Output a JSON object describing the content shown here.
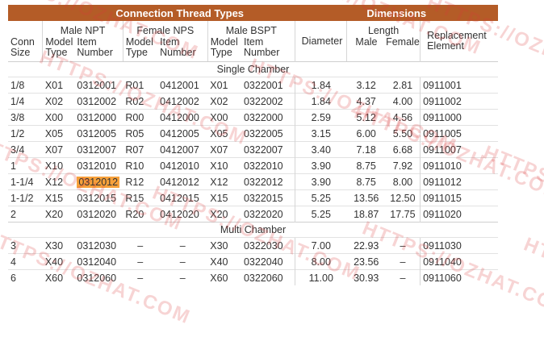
{
  "header": {
    "connection_thread_types": "Connection Thread Types",
    "dimensions": "Dimensions",
    "male_npt": "Male NPT",
    "female_nps": "Female NPS",
    "male_bspt": "Male BSPT",
    "diameter": "Diameter",
    "length": "Length",
    "replacement_element": "Replacement Element",
    "conn_size": "Conn Size",
    "model_type": "Model Type",
    "item_number": "Item Number",
    "male": "Male",
    "female": "Female"
  },
  "sections": [
    {
      "title": "Single Chamber",
      "rows": [
        [
          "1/8",
          "X01",
          "0312001",
          "R01",
          "0412001",
          "X01",
          "0322001",
          "1.84",
          "3.12",
          "2.81",
          "0911001"
        ],
        [
          "1/4",
          "X02",
          "0312002",
          "R02",
          "0412002",
          "X02",
          "0322002",
          "1.84",
          "4.37",
          "4.00",
          "0911002"
        ],
        [
          "3/8",
          "X00",
          "0312000",
          "R00",
          "0412000",
          "X00",
          "0322000",
          "2.59",
          "5.12",
          "4.56",
          "0911000"
        ],
        [
          "1/2",
          "X05",
          "0312005",
          "R05",
          "0412005",
          "X05",
          "0322005",
          "3.15",
          "6.00",
          "5.50",
          "0911005"
        ],
        [
          "3/4",
          "X07",
          "0312007",
          "R07",
          "0412007",
          "X07",
          "0322007",
          "3.40",
          "7.18",
          "6.68",
          "0911007"
        ],
        [
          "1",
          "X10",
          "0312010",
          "R10",
          "0412010",
          "X10",
          "0322010",
          "3.90",
          "8.75",
          "7.92",
          "0911010"
        ],
        [
          "1-1/4",
          "X12",
          "0312012",
          "R12",
          "0412012",
          "X12",
          "0322012",
          "3.90",
          "8.75",
          "8.00",
          "0911012"
        ],
        [
          "1-1/2",
          "X15",
          "0312015",
          "R15",
          "0412015",
          "X15",
          "0322015",
          "5.25",
          "13.56",
          "12.50",
          "0911015"
        ],
        [
          "2",
          "X20",
          "0312020",
          "R20",
          "0412020",
          "X20",
          "0322020",
          "5.25",
          "18.87",
          "17.75",
          "0911020"
        ]
      ]
    },
    {
      "title": "Multi Chamber",
      "rows": [
        [
          "3",
          "X30",
          "0312030",
          "–",
          "–",
          "X30",
          "0322030",
          "7.00",
          "22.93",
          "–",
          "0911030"
        ],
        [
          "4",
          "X40",
          "0312040",
          "–",
          "–",
          "X40",
          "0322040",
          "8.00",
          "23.56",
          "–",
          "0911040"
        ],
        [
          "6",
          "X60",
          "0312060",
          "–",
          "–",
          "X60",
          "0322060",
          "11.00",
          "30.93",
          "–",
          "0911060"
        ]
      ]
    }
  ],
  "highlight": {
    "section": 0,
    "row": 6,
    "col": 2,
    "color": "#f7a13b"
  },
  "colors": {
    "header_band": "#b45c27",
    "watermark": "#dc3c3c"
  },
  "watermark_text": "HTTPS://OZHAT.COM"
}
